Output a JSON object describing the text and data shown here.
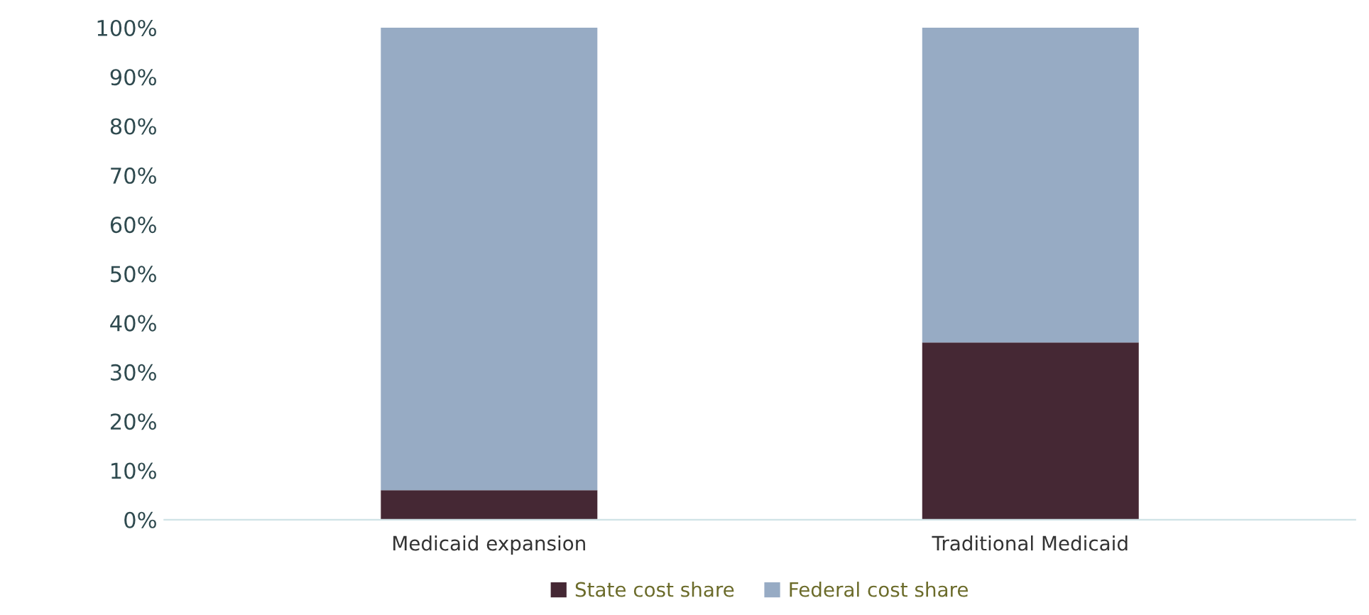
{
  "chart_data": {
    "type": "bar",
    "stacked": true,
    "categories": [
      "Medicaid expansion",
      "Traditional Medicaid"
    ],
    "series": [
      {
        "name": "State cost share",
        "color": "#452834",
        "values": [
          6,
          36
        ]
      },
      {
        "name": "Federal cost share",
        "color": "#97abc4",
        "values": [
          94,
          64
        ]
      }
    ],
    "ylim": [
      0,
      100
    ],
    "yticks": [
      {
        "value": 0,
        "label": "0%"
      },
      {
        "value": 10,
        "label": "10%"
      },
      {
        "value": 20,
        "label": "20%"
      },
      {
        "value": 30,
        "label": "30%"
      },
      {
        "value": 40,
        "label": "40%"
      },
      {
        "value": 50,
        "label": "50%"
      },
      {
        "value": 60,
        "label": "60%"
      },
      {
        "value": 70,
        "label": "70%"
      },
      {
        "value": 80,
        "label": "80%"
      },
      {
        "value": 90,
        "label": "90%"
      },
      {
        "value": 100,
        "label": "100%"
      }
    ],
    "grid": false,
    "legend": "bottom"
  }
}
